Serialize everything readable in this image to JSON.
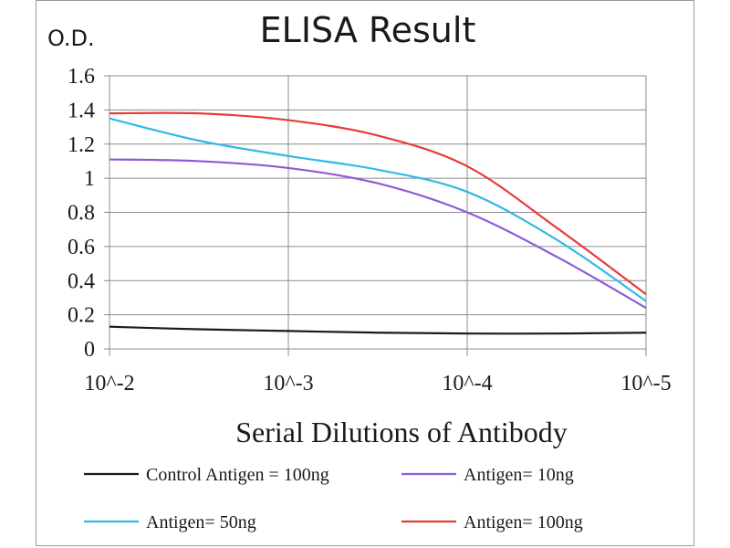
{
  "chart_data": {
    "type": "line",
    "title": "ELISA Result",
    "ylabel": "O.D.",
    "xlabel": "Serial Dilutions  of Antibody",
    "x_ticks": [
      "10^-2",
      "10^-3",
      "10^-4",
      "10^-5"
    ],
    "y_ticks": [
      "0",
      "0.2",
      "0.4",
      "0.6",
      "0.8",
      "1",
      "1.2",
      "1.4",
      "1.6"
    ],
    "ylim": [
      0,
      1.6
    ],
    "x_log_exponents": [
      -2,
      -3,
      -4,
      -5
    ],
    "grid": true,
    "legend_position": "bottom",
    "series": [
      {
        "name": "Control Antigen = 100ng",
        "color": "#1a1a1a",
        "points": [
          [
            -2,
            0.13
          ],
          [
            -2.5,
            0.115
          ],
          [
            -3,
            0.105
          ],
          [
            -3.5,
            0.095
          ],
          [
            -4,
            0.09
          ],
          [
            -4.5,
            0.09
          ],
          [
            -5,
            0.095
          ]
        ]
      },
      {
        "name": "Antigen= 10ng",
        "color": "#8e5bd6",
        "points": [
          [
            -2,
            1.11
          ],
          [
            -2.5,
            1.1
          ],
          [
            -3,
            1.06
          ],
          [
            -3.5,
            0.97
          ],
          [
            -4,
            0.8
          ],
          [
            -4.5,
            0.54
          ],
          [
            -5,
            0.24
          ]
        ]
      },
      {
        "name": "Antigen= 50ng",
        "color": "#32b8e6",
        "points": [
          [
            -2,
            1.35
          ],
          [
            -2.5,
            1.22
          ],
          [
            -3,
            1.13
          ],
          [
            -3.5,
            1.05
          ],
          [
            -4,
            0.92
          ],
          [
            -4.5,
            0.64
          ],
          [
            -5,
            0.28
          ]
        ]
      },
      {
        "name": "Antigen= 100ng",
        "color": "#e83a3a",
        "points": [
          [
            -2,
            1.38
          ],
          [
            -2.5,
            1.38
          ],
          [
            -3,
            1.34
          ],
          [
            -3.5,
            1.25
          ],
          [
            -4,
            1.07
          ],
          [
            -4.5,
            0.71
          ],
          [
            -5,
            0.32
          ]
        ]
      }
    ]
  }
}
